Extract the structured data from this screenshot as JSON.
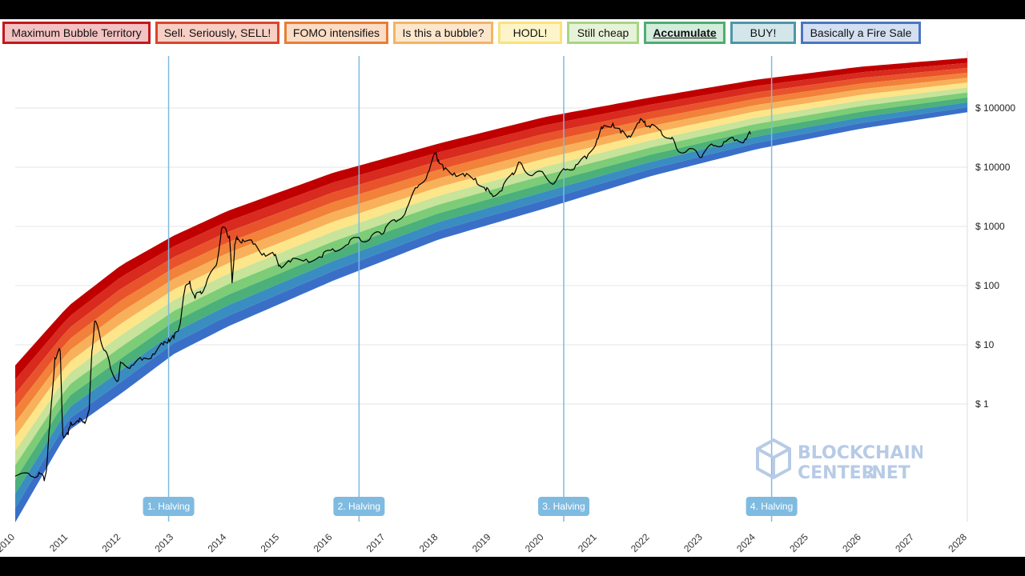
{
  "legend": [
    {
      "label": "Maximum Bubble Territory",
      "fill": "#f4c2c2",
      "border": "#c2181d"
    },
    {
      "label": "Sell. Seriously, SELL!",
      "fill": "#f8cfc4",
      "border": "#d9462c"
    },
    {
      "label": "FOMO intensifies",
      "fill": "#fbdcc4",
      "border": "#ea7d36"
    },
    {
      "label": "Is this a bubble?",
      "fill": "#fde7cc",
      "border": "#f4b464"
    },
    {
      "label": "HODL!",
      "fill": "#fdf5c9",
      "border": "#f9e27f"
    },
    {
      "label": "Still cheap",
      "fill": "#e7f3d8",
      "border": "#a8d585"
    },
    {
      "label": "Accumulate",
      "fill": "#d3ecdc",
      "border": "#4fae71",
      "emphasis": true
    },
    {
      "label": "BUY!",
      "fill": "#d3e6ea",
      "border": "#4f96a8"
    },
    {
      "label": "Basically a Fire Sale",
      "fill": "#d4e0f2",
      "border": "#4a76c2"
    }
  ],
  "logo": {
    "line1": "BLOCKCHAIN",
    "line2": "CENTER",
    "line3": ".NET",
    "icon": "cube-logo-icon"
  },
  "chart_data": {
    "type": "line",
    "title": "",
    "xlabel": "",
    "ylabel": "",
    "y_scale": "log",
    "x_range": [
      2010,
      2028
    ],
    "x_ticks": [
      "2010",
      "2011",
      "2012",
      "2013",
      "2014",
      "2015",
      "2016",
      "2017",
      "2018",
      "2019",
      "2020",
      "2021",
      "2022",
      "2023",
      "2024",
      "2025",
      "2026",
      "2027",
      "2028"
    ],
    "y_ticks": [
      {
        "value": 1,
        "label": "$ 1"
      },
      {
        "value": 10,
        "label": "$ 10"
      },
      {
        "value": 100,
        "label": "$ 100"
      },
      {
        "value": 1000,
        "label": "$ 1000"
      },
      {
        "value": 10000,
        "label": "$ 10000"
      },
      {
        "value": 100000,
        "label": "$ 100000"
      }
    ],
    "grid": true,
    "rainbow_band_colors": [
      "#c00000",
      "#d82a1e",
      "#e8532c",
      "#f2813a",
      "#f8b15a",
      "#fde58a",
      "#c8e39a",
      "#7dcc78",
      "#4bb07a",
      "#3a8dc0",
      "#3a6fc8"
    ],
    "rainbow_band_edges": {
      "x": [
        2010.0,
        2011.0,
        2012.0,
        2013.0,
        2014.0,
        2016.0,
        2018.0,
        2020.0,
        2022.0,
        2024.0,
        2026.0,
        2028.0
      ],
      "top": [
        4.5,
        45,
        220,
        700,
        1800,
        8000,
        25000,
        70000,
        150000,
        300000,
        500000,
        700000
      ],
      "bottom": [
        0.01,
        0.35,
        1.5,
        7,
        20,
        120,
        600,
        2000,
        7000,
        20000,
        45000,
        85000
      ]
    },
    "halvings": [
      {
        "label": "1. Halving",
        "x": 2012.9
      },
      {
        "label": "2. Halving",
        "x": 2016.5
      },
      {
        "label": "3. Halving",
        "x": 2020.37
      },
      {
        "label": "4. Halving",
        "x": 2024.3
      }
    ],
    "price_series": {
      "name": "",
      "x": [
        2010.0,
        2010.3,
        2010.45,
        2010.55,
        2010.6,
        2010.65,
        2010.75,
        2010.85,
        2010.9,
        2011.0,
        2011.05,
        2011.2,
        2011.3,
        2011.4,
        2011.45,
        2011.5,
        2011.6,
        2011.7,
        2011.8,
        2011.95,
        2012.0,
        2012.2,
        2012.4,
        2012.6,
        2012.8,
        2012.9,
        2013.0,
        2013.1,
        2013.2,
        2013.3,
        2013.4,
        2013.5,
        2013.6,
        2013.8,
        2013.9,
        2014.0,
        2014.05,
        2014.1,
        2014.15,
        2014.2,
        2014.3,
        2014.5,
        2014.7,
        2014.9,
        2015.0,
        2015.2,
        2015.5,
        2015.8,
        2016.0,
        2016.3,
        2016.5,
        2016.7,
        2016.9,
        2017.0,
        2017.2,
        2017.4,
        2017.6,
        2017.8,
        2017.95,
        2018.0,
        2018.1,
        2018.3,
        2018.5,
        2018.7,
        2018.9,
        2019.0,
        2019.2,
        2019.4,
        2019.5,
        2019.6,
        2019.8,
        2020.0,
        2020.2,
        2020.4,
        2020.6,
        2020.8,
        2021.0,
        2021.1,
        2021.3,
        2021.45,
        2021.6,
        2021.8,
        2021.9,
        2022.0,
        2022.2,
        2022.4,
        2022.5,
        2022.7,
        2022.9,
        2023.0,
        2023.2,
        2023.4,
        2023.6,
        2023.8,
        2023.9
      ],
      "y": [
        0.06,
        0.06,
        0.07,
        0.05,
        0.1,
        0.4,
        6,
        8,
        0.3,
        0.3,
        0.5,
        0.5,
        0.5,
        0.8,
        8,
        25,
        14,
        8,
        4,
        2.5,
        5,
        4.5,
        5.5,
        7,
        10,
        12.5,
        13,
        20,
        80,
        120,
        60,
        80,
        100,
        220,
        900,
        800,
        700,
        110,
        500,
        600,
        600,
        500,
        350,
        320,
        220,
        250,
        280,
        300,
        420,
        500,
        650,
        600,
        780,
        950,
        1200,
        2000,
        4500,
        8000,
        17000,
        13500,
        9000,
        8000,
        7000,
        6500,
        4000,
        3600,
        4000,
        8000,
        11000,
        10000,
        7500,
        7500,
        5500,
        9000,
        11000,
        14000,
        30000,
        45000,
        55000,
        38000,
        34000,
        57000,
        60000,
        47000,
        42000,
        30000,
        21000,
        19000,
        17000,
        16500,
        23000,
        27000,
        28000,
        30000,
        36000
      ]
    }
  }
}
